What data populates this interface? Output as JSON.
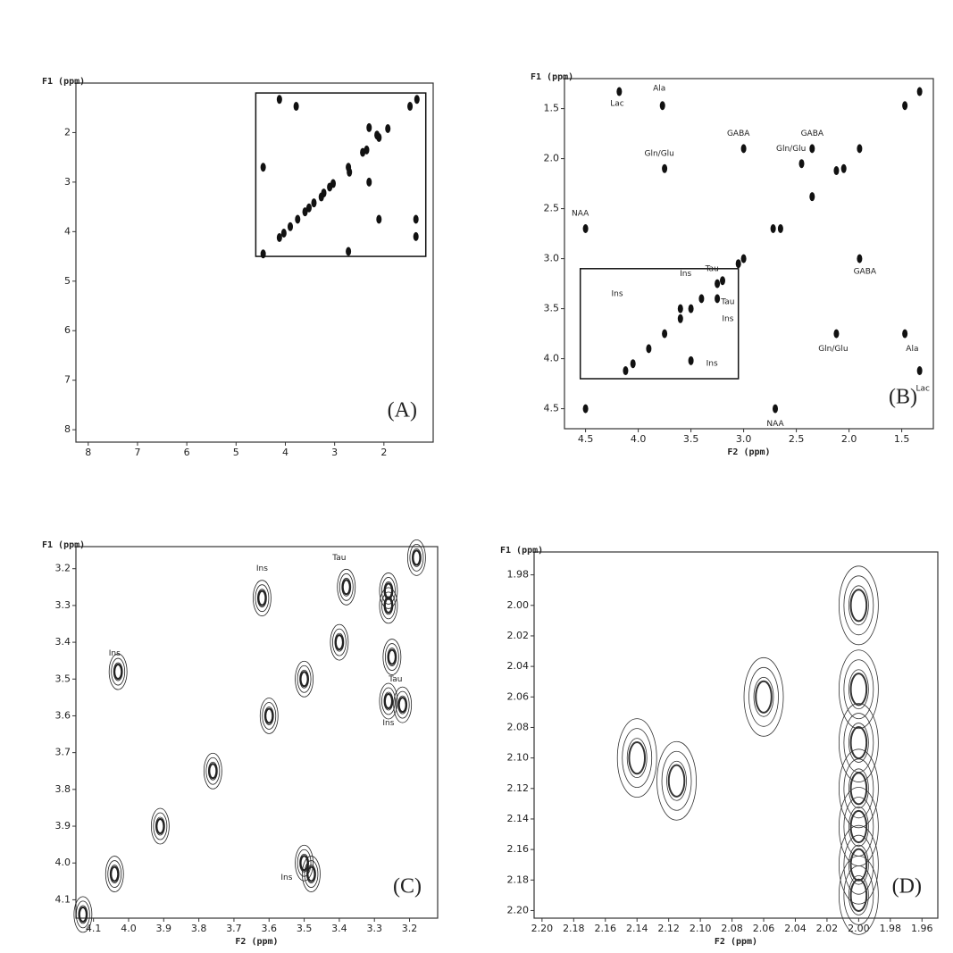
{
  "chart_data": [
    {
      "type": "scatter",
      "panel_label": "(A)",
      "y_label": "F1 (ppm)",
      "xlim": [
        8.25,
        1.0
      ],
      "ylim": [
        1.0,
        8.25
      ],
      "xticks": [
        8,
        7,
        6,
        5,
        4,
        3,
        2
      ],
      "yticks": [
        2,
        3,
        4,
        5,
        6,
        7,
        8
      ],
      "color": "#111111",
      "region": {
        "x": [
          4.6,
          1.15
        ],
        "y": [
          1.2,
          4.5
        ]
      },
      "x": [
        1.33,
        1.47,
        1.92,
        2.1,
        2.14,
        2.35,
        2.43,
        2.72,
        2.7,
        3.03,
        3.1,
        3.22,
        3.27,
        3.42,
        3.52,
        3.6,
        3.75,
        3.9,
        4.03,
        4.12,
        4.45,
        4.45,
        4.12,
        3.78,
        2.3,
        1.35,
        1.35,
        2.1,
        2.72,
        2.3
      ],
      "y": [
        1.33,
        1.47,
        1.92,
        2.1,
        2.05,
        2.35,
        2.4,
        2.7,
        2.8,
        3.03,
        3.1,
        3.22,
        3.3,
        3.42,
        3.52,
        3.6,
        3.75,
        3.9,
        4.03,
        4.12,
        2.7,
        4.45,
        1.33,
        1.47,
        1.9,
        3.75,
        4.1,
        3.75,
        4.4,
        3.0
      ],
      "annotations": []
    },
    {
      "type": "scatter",
      "panel_label": "(B)",
      "y_label": "F1 (ppm)",
      "x_label": "F2 (ppm)",
      "xlim": [
        4.7,
        1.2
      ],
      "ylim": [
        1.2,
        4.7
      ],
      "xticks": [
        4.5,
        {
          "value": 4,
          "label": "4.0"
        },
        3.5,
        {
          "value": 3,
          "label": "3.0"
        },
        2.5,
        {
          "value": 2,
          "label": "2.0"
        },
        1.5
      ],
      "yticks": [
        1.5,
        {
          "value": 2,
          "label": "2.0"
        },
        2.5,
        {
          "value": 3,
          "label": "3.0"
        },
        3.5,
        {
          "value": 4,
          "label": "4.0"
        },
        4.5
      ],
      "color": "#111111",
      "region": {
        "x": [
          4.55,
          3.05
        ],
        "y": [
          3.1,
          4.2
        ]
      },
      "x": [
        4.18,
        3.77,
        3.0,
        2.35,
        3.75,
        2.45,
        4.5,
        1.33,
        1.47,
        1.9,
        2.05,
        2.12,
        2.35,
        2.72,
        2.65,
        3.0,
        3.05,
        3.2,
        3.25,
        3.4,
        3.5,
        3.6,
        3.75,
        3.9,
        4.05,
        4.12,
        4.5,
        1.9,
        1.47,
        1.33,
        2.12,
        2.7,
        3.6,
        3.25,
        3.5
      ],
      "y": [
        1.33,
        1.47,
        1.9,
        1.9,
        2.1,
        2.05,
        2.7,
        1.33,
        1.47,
        1.9,
        2.1,
        2.12,
        2.38,
        2.7,
        2.7,
        3.0,
        3.05,
        3.22,
        3.25,
        3.4,
        3.5,
        3.6,
        3.75,
        3.9,
        4.05,
        4.12,
        4.5,
        3.0,
        3.75,
        4.12,
        3.75,
        4.5,
        3.5,
        3.4,
        4.02
      ],
      "annotations": [
        {
          "text": "Lac",
          "x": 4.2,
          "y": 1.45
        },
        {
          "text": "Ala",
          "x": 3.8,
          "y": 1.3
        },
        {
          "text": "GABA",
          "x": 3.05,
          "y": 1.75
        },
        {
          "text": "GABA",
          "x": 2.35,
          "y": 1.75
        },
        {
          "text": "Gln/Glu",
          "x": 2.55,
          "y": 1.9
        },
        {
          "text": "Gln/Glu",
          "x": 3.8,
          "y": 1.95
        },
        {
          "text": "NAA",
          "x": 4.55,
          "y": 2.55
        },
        {
          "text": "Tau",
          "x": 3.3,
          "y": 3.1
        },
        {
          "text": "Ins",
          "x": 3.55,
          "y": 3.15
        },
        {
          "text": "Ins",
          "x": 4.2,
          "y": 3.35
        },
        {
          "text": "Tau",
          "x": 3.15,
          "y": 3.43
        },
        {
          "text": "Ins",
          "x": 3.15,
          "y": 3.6
        },
        {
          "text": "Ins",
          "x": 3.3,
          "y": 4.05
        },
        {
          "text": "GABA",
          "x": 1.85,
          "y": 3.13
        },
        {
          "text": "Gln/Glu",
          "x": 2.15,
          "y": 3.9
        },
        {
          "text": "Ala",
          "x": 1.4,
          "y": 3.9
        },
        {
          "text": "Lac",
          "x": 1.3,
          "y": 4.3
        },
        {
          "text": "NAA",
          "x": 2.7,
          "y": 4.65
        }
      ]
    },
    {
      "type": "contour",
      "panel_label": "(C)",
      "y_label": "F1 (ppm)",
      "x_label": "F2 (ppm)",
      "xlim": [
        4.15,
        3.12
      ],
      "ylim": [
        3.14,
        4.15
      ],
      "xticks": [
        4.1,
        {
          "value": 4,
          "label": "4.0"
        },
        3.9,
        3.8,
        3.7,
        3.6,
        3.5,
        3.4,
        3.3,
        3.2
      ],
      "yticks": [
        3.2,
        3.3,
        3.4,
        3.5,
        3.6,
        3.7,
        3.8,
        3.9,
        {
          "value": 4,
          "label": "4.0"
        },
        4.1
      ],
      "color": "#222222",
      "x": [
        3.18,
        3.26,
        3.26,
        3.38,
        3.4,
        3.62,
        3.5,
        3.6,
        3.76,
        3.91,
        4.04,
        4.03,
        3.5,
        3.48,
        3.26,
        3.22,
        3.25,
        4.13
      ],
      "y": [
        3.17,
        3.26,
        3.3,
        3.25,
        3.4,
        3.28,
        3.5,
        3.6,
        3.75,
        3.9,
        4.03,
        3.48,
        4.0,
        4.03,
        3.56,
        3.57,
        3.44,
        4.14
      ],
      "annotations": [
        {
          "text": "Ins",
          "x": 3.62,
          "y": 3.2
        },
        {
          "text": "Tau",
          "x": 3.4,
          "y": 3.17
        },
        {
          "text": "Ins",
          "x": 4.04,
          "y": 3.43
        },
        {
          "text": "Tau",
          "x": 3.24,
          "y": 3.5
        },
        {
          "text": "Ins",
          "x": 3.26,
          "y": 3.62
        },
        {
          "text": "Ins",
          "x": 3.55,
          "y": 4.04
        }
      ]
    },
    {
      "type": "contour",
      "panel_label": "(D)",
      "y_label": "F1 (ppm)",
      "x_label": "F2 (ppm)",
      "xlim": [
        2.205,
        1.95
      ],
      "ylim": [
        1.965,
        2.205
      ],
      "xticks": [
        {
          "value": 2.2,
          "label": "2.20"
        },
        2.18,
        2.16,
        2.14,
        2.12,
        {
          "value": 2.1,
          "label": "2.10"
        },
        2.08,
        2.06,
        2.04,
        2.02,
        {
          "value": 2,
          "label": "2.00"
        },
        1.98,
        1.96
      ],
      "yticks": [
        1.98,
        {
          "value": 2,
          "label": "2.00"
        },
        2.02,
        2.04,
        2.06,
        2.08,
        {
          "value": 2.1,
          "label": "2.10"
        },
        2.12,
        2.14,
        2.16,
        2.18,
        {
          "value": 2.2,
          "label": "2.20"
        }
      ],
      "color": "#333333",
      "x": [
        2.0,
        2.0,
        2.0,
        2.0,
        2.0,
        2.0,
        2.0,
        2.06,
        2.115,
        2.14
      ],
      "y": [
        2.0,
        2.055,
        2.09,
        2.12,
        2.145,
        2.17,
        2.19,
        2.06,
        2.115,
        2.1
      ],
      "annotations": []
    }
  ]
}
